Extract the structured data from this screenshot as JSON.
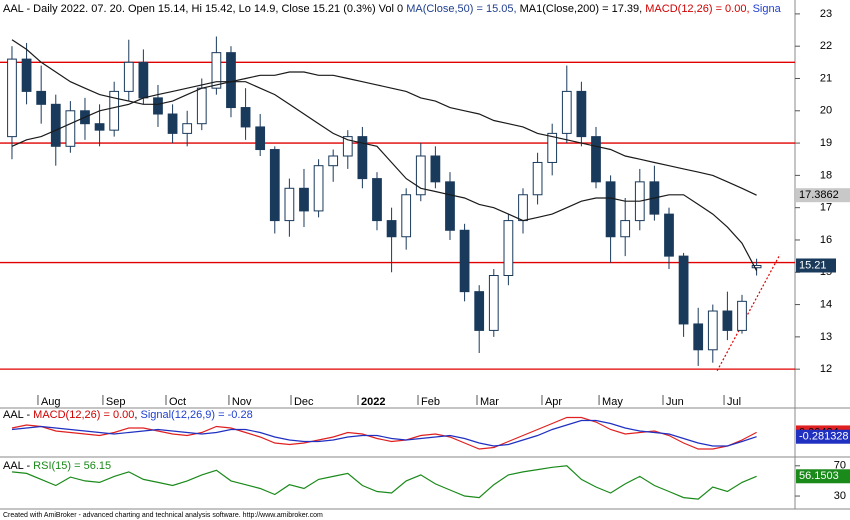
{
  "chart_data": [
    {
      "type": "candlestick",
      "title": [
        {
          "text": "AAL - Daily 2022. 07. 20. Open 15.14, Hi 15.42, Lo 14.9, Close 15.21 (0.3%) Vol 0 ",
          "color": "#000000"
        },
        {
          "text": "MA(Close,50) = 15.05, ",
          "color": "#1f3f8f"
        },
        {
          "text": "MA1(Close,200) = 17.39, ",
          "color": "#000000"
        },
        {
          "text": "MACD(12,26) = 0.00, ",
          "color": "#d00000"
        },
        {
          "text": "Signa",
          "color": "#2040d0"
        }
      ],
      "xlim": [
        -0.82,
        53.63
      ],
      "xticks": [
        {
          "value": 1.78,
          "label": "Aug"
        },
        {
          "value": 6.23,
          "label": "Sep"
        },
        {
          "value": 10.55,
          "label": "Oct"
        },
        {
          "value": 14.86,
          "label": "Nov"
        },
        {
          "value": 19.11,
          "label": "Dec"
        },
        {
          "value": 23.7,
          "label": "2022"
        },
        {
          "value": 27.81,
          "label": "Feb"
        },
        {
          "value": 31.85,
          "label": "Mar"
        },
        {
          "value": 36.3,
          "label": "Apr"
        },
        {
          "value": 40.21,
          "label": "May"
        },
        {
          "value": 44.59,
          "label": "Jun"
        },
        {
          "value": 48.77,
          "label": "Jul"
        }
      ],
      "ylim": [
        11.2,
        23.43
      ],
      "yticks": [
        12,
        13,
        14,
        15,
        16,
        17,
        18,
        19,
        20,
        21,
        22,
        23
      ],
      "color": "#1a3a5c",
      "candles": [
        [
          19.2,
          22.0,
          18.5,
          21.6
        ],
        [
          21.6,
          22.1,
          20.2,
          20.6
        ],
        [
          20.6,
          21.4,
          19.6,
          20.2
        ],
        [
          20.2,
          20.5,
          18.3,
          18.9
        ],
        [
          18.9,
          20.3,
          18.7,
          20.0
        ],
        [
          20.0,
          20.4,
          19.1,
          19.6
        ],
        [
          19.6,
          20.2,
          18.9,
          19.4
        ],
        [
          19.4,
          20.9,
          19.2,
          20.6
        ],
        [
          20.6,
          22.2,
          20.3,
          21.5
        ],
        [
          21.5,
          21.9,
          20.2,
          20.4
        ],
        [
          20.4,
          20.8,
          19.5,
          19.9
        ],
        [
          19.9,
          20.2,
          19.0,
          19.3
        ],
        [
          19.3,
          20.0,
          18.9,
          19.6
        ],
        [
          19.6,
          21.0,
          19.4,
          20.7
        ],
        [
          20.7,
          22.3,
          20.5,
          21.8
        ],
        [
          21.8,
          22.0,
          19.8,
          20.1
        ],
        [
          20.1,
          20.7,
          19.1,
          19.5
        ],
        [
          19.5,
          19.9,
          18.6,
          18.8
        ],
        [
          18.8,
          18.9,
          16.2,
          16.6
        ],
        [
          16.6,
          17.9,
          16.1,
          17.6
        ],
        [
          17.6,
          18.2,
          16.4,
          16.9
        ],
        [
          16.9,
          18.5,
          16.7,
          18.3
        ],
        [
          18.3,
          18.8,
          17.8,
          18.6
        ],
        [
          18.6,
          19.4,
          18.2,
          19.2
        ],
        [
          19.2,
          19.5,
          17.6,
          17.9
        ],
        [
          17.9,
          18.1,
          16.3,
          16.6
        ],
        [
          16.6,
          17.0,
          15.0,
          16.1
        ],
        [
          16.1,
          17.6,
          15.7,
          17.4
        ],
        [
          17.4,
          19.0,
          17.2,
          18.6
        ],
        [
          18.6,
          18.9,
          17.6,
          17.8
        ],
        [
          17.8,
          18.1,
          16.0,
          16.3
        ],
        [
          16.3,
          16.5,
          14.1,
          14.4
        ],
        [
          14.4,
          14.6,
          12.5,
          13.2
        ],
        [
          13.2,
          15.1,
          13.0,
          14.9
        ],
        [
          14.9,
          16.8,
          14.6,
          16.6
        ],
        [
          16.6,
          17.6,
          16.2,
          17.4
        ],
        [
          17.4,
          18.7,
          17.1,
          18.4
        ],
        [
          18.4,
          19.6,
          18.0,
          19.3
        ],
        [
          19.3,
          21.4,
          19.0,
          20.6
        ],
        [
          20.6,
          20.9,
          18.9,
          19.2
        ],
        [
          19.2,
          19.5,
          17.6,
          17.8
        ],
        [
          17.8,
          18.0,
          15.3,
          16.1
        ],
        [
          16.1,
          17.3,
          15.5,
          16.6
        ],
        [
          16.6,
          18.2,
          16.3,
          17.8
        ],
        [
          17.8,
          18.3,
          16.6,
          16.8
        ],
        [
          16.8,
          17.0,
          15.1,
          15.5
        ],
        [
          15.5,
          15.6,
          13.0,
          13.4
        ],
        [
          13.4,
          13.9,
          12.1,
          12.6
        ],
        [
          12.6,
          14.0,
          12.2,
          13.8
        ],
        [
          13.8,
          14.4,
          12.9,
          13.2
        ],
        [
          13.2,
          14.3,
          13.1,
          14.1
        ],
        [
          15.14,
          15.42,
          14.9,
          15.21
        ]
      ],
      "last_box": {
        "bg": "#1a3a5c",
        "fg": "#ffffff"
      },
      "series": [
        {
          "color": "#1a1a1a",
          "values": [
            22.2,
            21.9,
            21.5,
            21.2,
            20.9,
            20.7,
            20.5,
            20.4,
            20.3,
            20.2,
            20.2,
            20.3,
            20.5,
            20.7,
            20.8,
            20.9,
            20.9,
            20.7,
            20.5,
            20.2,
            19.9,
            19.6,
            19.3,
            19.1,
            19.0,
            18.9,
            18.4,
            17.9,
            17.6,
            17.5,
            17.4,
            17.3,
            17.1,
            17.0,
            16.8,
            16.6,
            16.7,
            16.8,
            17.0,
            17.2,
            17.3,
            17.3,
            17.2,
            17.2,
            17.3,
            17.4,
            17.4,
            17.1,
            16.8,
            16.4,
            15.9,
            15.05
          ]
        },
        {
          "color": "#1a1a1a",
          "box": {
            "bg": "#c8c8c8",
            "fg": "#000000"
          },
          "values": [
            18.9,
            19.1,
            19.2,
            19.4,
            19.6,
            19.8,
            20.0,
            20.1,
            20.2,
            20.4,
            20.5,
            20.6,
            20.7,
            20.8,
            20.9,
            20.9,
            21.0,
            21.1,
            21.1,
            21.2,
            21.2,
            21.1,
            21.1,
            21.0,
            20.9,
            20.8,
            20.7,
            20.6,
            20.4,
            20.3,
            20.1,
            20.0,
            19.9,
            19.7,
            19.6,
            19.5,
            19.3,
            19.2,
            19.1,
            19.0,
            18.9,
            18.8,
            18.6,
            18.5,
            18.4,
            18.3,
            18.2,
            18.1,
            18.0,
            17.8,
            17.6,
            17.3862
          ]
        }
      ],
      "hlines": {
        "color": "#e00000",
        "values": [
          21.5,
          19.0,
          15.3,
          12.0
        ]
      },
      "trendline": {
        "color": "#e00000",
        "x": [
          48.3,
          52.6
        ],
        "y": [
          11.95,
          15.55
        ]
      }
    },
    {
      "type": "line",
      "title": [
        {
          "text": "AAL - ",
          "color": "#000000"
        },
        {
          "text": "MACD(12,26) = 0.00",
          "color": "#d00000"
        },
        {
          "text": ", ",
          "color": "#000000"
        },
        {
          "text": "Signal(12,26,9) = -0.28",
          "color": "#2040d0"
        }
      ],
      "ylim": [
        -1.5,
        1.5
      ],
      "series": [
        {
          "color": "#e02020",
          "box": {
            "bg": "#e02020",
            "fg": "#000000"
          },
          "values": [
            0.3,
            0.5,
            0.4,
            0.1,
            0.0,
            -0.1,
            -0.2,
            0.0,
            0.3,
            0.3,
            0.1,
            -0.1,
            -0.2,
            0.0,
            0.4,
            0.3,
            0.0,
            -0.3,
            -0.7,
            -0.8,
            -0.7,
            -0.5,
            -0.3,
            0.0,
            -0.1,
            -0.4,
            -0.6,
            -0.5,
            -0.2,
            -0.1,
            -0.3,
            -0.7,
            -1.1,
            -1.0,
            -0.6,
            -0.2,
            0.2,
            0.6,
            1.0,
            1.0,
            0.7,
            0.2,
            -0.1,
            0.0,
            0.1,
            -0.2,
            -0.7,
            -1.1,
            -1.1,
            -0.9,
            -0.5,
            0.00434
          ]
        },
        {
          "color": "#2030c0",
          "box": {
            "bg": "#2030c0",
            "fg": "#ffffff"
          },
          "values": [
            0.2,
            0.3,
            0.4,
            0.3,
            0.2,
            0.1,
            0.0,
            -0.1,
            0.0,
            0.1,
            0.2,
            0.1,
            0.0,
            -0.1,
            0.0,
            0.2,
            0.2,
            0.0,
            -0.3,
            -0.5,
            -0.6,
            -0.6,
            -0.5,
            -0.3,
            -0.2,
            -0.2,
            -0.4,
            -0.5,
            -0.4,
            -0.3,
            -0.2,
            -0.4,
            -0.7,
            -0.9,
            -0.8,
            -0.5,
            -0.2,
            0.2,
            0.5,
            0.8,
            0.8,
            0.6,
            0.3,
            0.1,
            0.0,
            -0.1,
            -0.4,
            -0.7,
            -0.9,
            -0.9,
            -0.6,
            -0.281328
          ]
        }
      ]
    },
    {
      "type": "line",
      "title": [
        {
          "text": "AAL - ",
          "color": "#000000"
        },
        {
          "text": "RSI(15) = 56.15",
          "color": "#1a8a1a"
        }
      ],
      "ylim": [
        15.5,
        79
      ],
      "yticks": [
        30,
        70
      ],
      "series": [
        {
          "color": "#1a8a1a",
          "box": {
            "bg": "#1a8a1a",
            "fg": "#ffffff"
          },
          "values": [
            62,
            60,
            52,
            44,
            55,
            50,
            48,
            56,
            62,
            52,
            48,
            44,
            50,
            58,
            64,
            50,
            45,
            40,
            32,
            45,
            40,
            52,
            56,
            60,
            44,
            36,
            34,
            50,
            58,
            46,
            38,
            30,
            28,
            45,
            58,
            62,
            65,
            68,
            70,
            52,
            42,
            34,
            46,
            56,
            44,
            36,
            28,
            26,
            42,
            36,
            48,
            56.1503
          ]
        }
      ]
    }
  ],
  "footer": "Created with AmiBroker - advanced charting and technical analysis software. http://www.amibroker.com"
}
